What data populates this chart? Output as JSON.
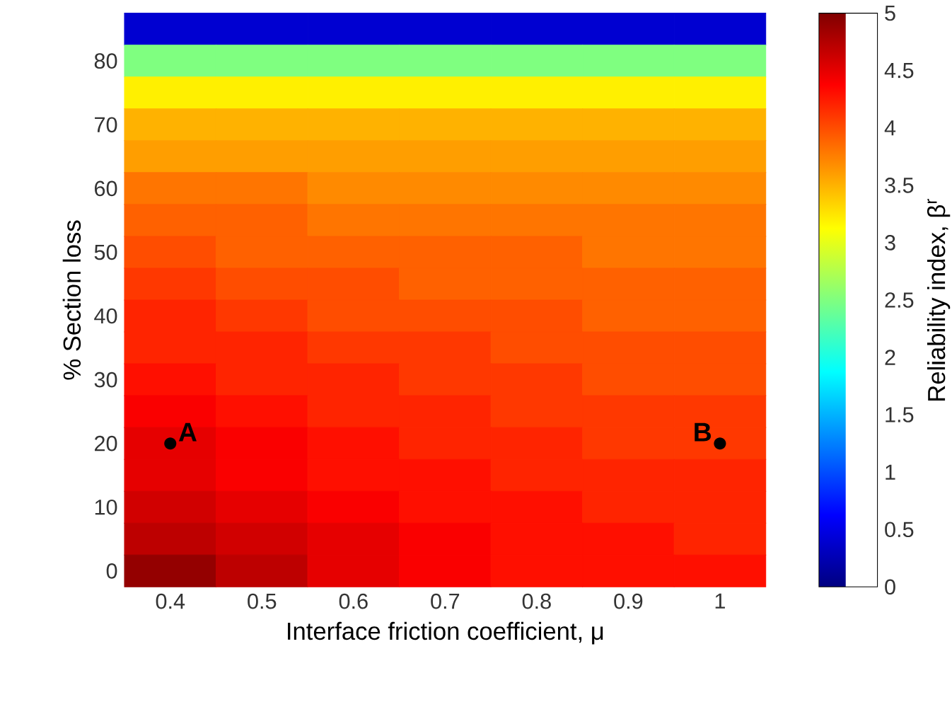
{
  "chart_data": {
    "type": "heatmap",
    "xlabel": "Interface friction coefficient, μ",
    "ylabel": "% Section loss",
    "clabel": "Reliability index, β$^{r}$",
    "categories": [
      "0.4",
      "0.5",
      "0.6",
      "0.7",
      "0.8",
      "0.9",
      "1"
    ],
    "y_categories": [
      null,
      "80",
      null,
      "70",
      null,
      "60",
      null,
      "50",
      null,
      "40",
      null,
      "30",
      null,
      "20",
      null,
      "10",
      null,
      "0"
    ],
    "clim": [
      0,
      5
    ],
    "cticks": [
      0,
      0.5,
      1,
      1.5,
      2,
      2.5,
      3,
      3.5,
      4,
      4.5,
      5
    ],
    "cells": [
      [
        0.4,
        0.4,
        0.4,
        0.4,
        0.4,
        0.4,
        0.4
      ],
      [
        2.5,
        2.5,
        2.5,
        2.5,
        2.5,
        2.5,
        2.5
      ],
      [
        3.2,
        3.2,
        3.2,
        3.2,
        3.2,
        3.2,
        3.2
      ],
      [
        3.5,
        3.5,
        3.5,
        3.5,
        3.5,
        3.5,
        3.5
      ],
      [
        3.6,
        3.6,
        3.6,
        3.6,
        3.6,
        3.6,
        3.6
      ],
      [
        3.8,
        3.8,
        3.7,
        3.7,
        3.7,
        3.7,
        3.7
      ],
      [
        3.9,
        3.9,
        3.8,
        3.8,
        3.8,
        3.8,
        3.8
      ],
      [
        4.0,
        3.9,
        3.9,
        3.9,
        3.9,
        3.8,
        3.8
      ],
      [
        4.1,
        4.0,
        4.0,
        3.9,
        3.9,
        3.9,
        3.9
      ],
      [
        4.2,
        4.1,
        4.0,
        4.0,
        4.0,
        3.9,
        3.9
      ],
      [
        4.2,
        4.2,
        4.1,
        4.1,
        4.0,
        4.0,
        4.0
      ],
      [
        4.3,
        4.2,
        4.2,
        4.1,
        4.1,
        4.0,
        4.0
      ],
      [
        4.4,
        4.3,
        4.2,
        4.2,
        4.1,
        4.1,
        4.1
      ],
      [
        4.5,
        4.4,
        4.3,
        4.2,
        4.2,
        4.1,
        4.1
      ],
      [
        4.5,
        4.4,
        4.3,
        4.3,
        4.2,
        4.2,
        4.2
      ],
      [
        4.6,
        4.5,
        4.4,
        4.3,
        4.3,
        4.2,
        4.2
      ],
      [
        4.7,
        4.6,
        4.5,
        4.4,
        4.3,
        4.3,
        4.2
      ],
      [
        4.9,
        4.7,
        4.5,
        4.4,
        4.3,
        4.3,
        4.3
      ]
    ],
    "annotations": [
      {
        "text": "A",
        "x": "0.4",
        "y": "20"
      },
      {
        "text": "B",
        "x": "1",
        "y": "20"
      }
    ]
  }
}
